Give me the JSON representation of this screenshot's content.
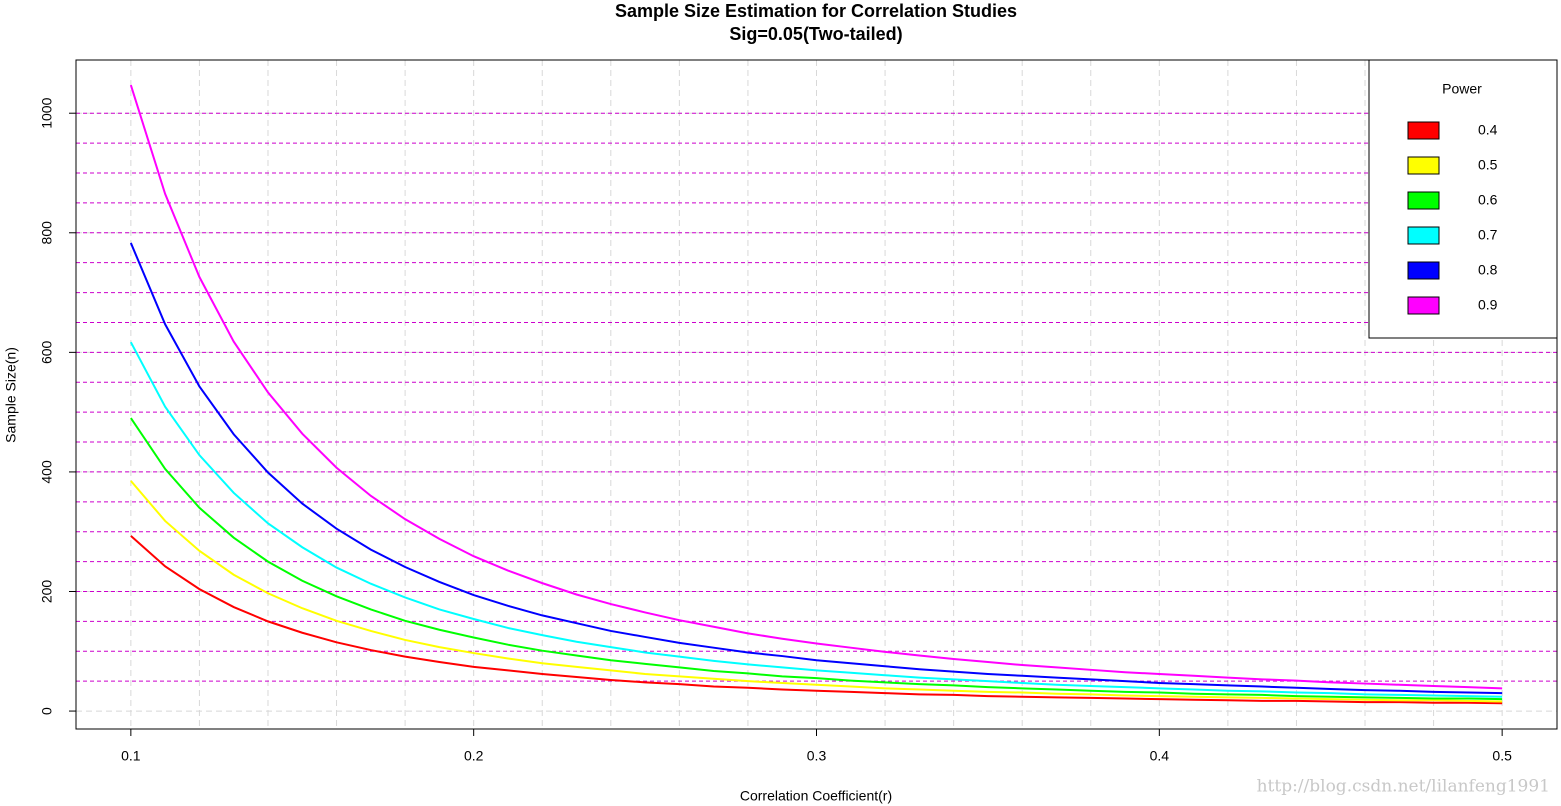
{
  "chart_data": {
    "type": "line",
    "title": "Sample Size Estimation for Correlation Studies",
    "subtitle": "Sig=0.05(Two-tailed)",
    "x_label": "Correlation Coefficient(r)",
    "y_label": "Sample Size(n)",
    "legend_title": "Power",
    "legend_position": "top-right",
    "watermark": "http://blog.csdn.net/lilanfeng1991",
    "x": [
      0.1,
      0.11,
      0.12,
      0.13,
      0.14,
      0.15,
      0.16,
      0.17,
      0.18,
      0.19,
      0.2,
      0.21,
      0.22,
      0.23,
      0.24,
      0.25,
      0.26,
      0.27,
      0.28,
      0.29,
      0.3,
      0.31,
      0.32,
      0.33,
      0.34,
      0.35,
      0.36,
      0.37,
      0.38,
      0.39,
      0.4,
      0.41,
      0.42,
      0.43,
      0.44,
      0.45,
      0.46,
      0.47,
      0.48,
      0.49,
      0.5
    ],
    "series": [
      {
        "name": "0.4",
        "color": "#ff0000",
        "values": [
          293,
          242,
          204,
          174,
          150,
          131,
          115,
          102,
          91,
          82,
          74,
          68,
          62,
          57,
          52,
          48,
          45,
          41,
          39,
          36,
          34,
          32,
          30,
          28,
          27,
          25,
          24,
          23,
          22,
          21,
          20,
          19,
          18,
          17,
          17,
          16,
          15,
          15,
          14,
          14,
          13
        ]
      },
      {
        "name": "0.5",
        "color": "#ffff00",
        "values": [
          385,
          318,
          268,
          228,
          197,
          172,
          151,
          134,
          119,
          107,
          97,
          88,
          80,
          74,
          68,
          62,
          58,
          54,
          50,
          47,
          44,
          41,
          38,
          36,
          34,
          32,
          31,
          29,
          28,
          26,
          25,
          24,
          23,
          22,
          21,
          20,
          19,
          18,
          18,
          17,
          16
        ]
      },
      {
        "name": "0.6",
        "color": "#00ff00",
        "values": [
          490,
          405,
          340,
          290,
          250,
          218,
          192,
          170,
          151,
          136,
          123,
          111,
          101,
          93,
          85,
          79,
          73,
          67,
          63,
          58,
          55,
          51,
          48,
          45,
          43,
          40,
          38,
          36,
          34,
          32,
          31,
          29,
          28,
          27,
          25,
          24,
          23,
          22,
          21,
          21,
          20
        ]
      },
      {
        "name": "0.7",
        "color": "#00ffff",
        "values": [
          617,
          509,
          428,
          365,
          314,
          274,
          240,
          213,
          190,
          170,
          154,
          139,
          127,
          116,
          107,
          98,
          91,
          84,
          78,
          73,
          68,
          64,
          60,
          56,
          53,
          50,
          47,
          44,
          42,
          40,
          38,
          36,
          34,
          33,
          31,
          30,
          28,
          27,
          26,
          25,
          24
        ]
      },
      {
        "name": "0.8",
        "color": "#0000ff",
        "values": [
          783,
          647,
          543,
          463,
          399,
          347,
          305,
          270,
          241,
          216,
          194,
          176,
          160,
          147,
          134,
          124,
          114,
          106,
          98,
          92,
          85,
          80,
          75,
          70,
          66,
          62,
          59,
          56,
          53,
          50,
          47,
          45,
          43,
          41,
          39,
          37,
          35,
          34,
          32,
          31,
          30
        ]
      },
      {
        "name": "0.9",
        "color": "#ff00ff",
        "values": [
          1047,
          865,
          726,
          618,
          533,
          464,
          407,
          360,
          321,
          288,
          259,
          235,
          214,
          195,
          179,
          165,
          152,
          141,
          130,
          121,
          113,
          106,
          99,
          93,
          87,
          82,
          77,
          73,
          69,
          65,
          62,
          59,
          56,
          53,
          51,
          48,
          46,
          44,
          42,
          40,
          38
        ]
      }
    ],
    "xlim": [
      0.084,
      0.516
    ],
    "ylim": [
      -30,
      1089
    ],
    "xticks": [
      0.1,
      0.2,
      0.3,
      0.4,
      0.5
    ],
    "yticks": [
      0,
      200,
      400,
      600,
      800,
      1000
    ],
    "x_grid": [
      0.1,
      0.12,
      0.14,
      0.16,
      0.18,
      0.2,
      0.22,
      0.24,
      0.26,
      0.28,
      0.3,
      0.32,
      0.34,
      0.36,
      0.38,
      0.4,
      0.42,
      0.44,
      0.46,
      0.48,
      0.5
    ],
    "grid_color": "#d8d8d8",
    "reference_lines": {
      "color": "#cc00cc",
      "values": [
        50,
        100,
        150,
        200,
        250,
        300,
        350,
        400,
        450,
        500,
        550,
        600,
        650,
        700,
        750,
        800,
        850,
        900,
        950,
        1000
      ]
    }
  }
}
